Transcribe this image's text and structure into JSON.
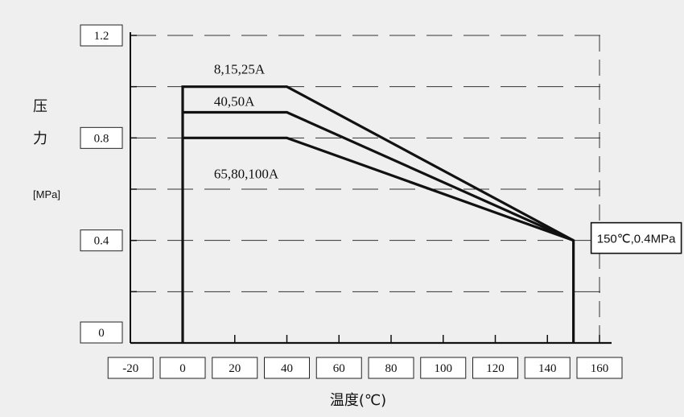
{
  "chart_data": {
    "type": "line",
    "ylabel_chars": [
      "压",
      "力"
    ],
    "yunit": "[MPa]",
    "xlabel": "温度(℃)",
    "x_ticks": [
      "-20",
      "0",
      "20",
      "40",
      "60",
      "80",
      "100",
      "120",
      "140",
      "160"
    ],
    "y_ticks": [
      "1.2",
      "0.8",
      "0.4",
      "0"
    ],
    "xlim": [
      -20,
      160
    ],
    "ylim": [
      0,
      1.2
    ],
    "series": [
      {
        "name": "8,15,25A",
        "x": [
          0,
          0,
          40,
          150,
          150
        ],
        "y": [
          0,
          1.0,
          1.0,
          0.4,
          0
        ]
      },
      {
        "name": "40,50A",
        "x": [
          0,
          40,
          150
        ],
        "y": [
          0.9,
          0.9,
          0.4
        ]
      },
      {
        "name": "65,80,100A",
        "x": [
          0,
          40,
          150
        ],
        "y": [
          0.8,
          0.8,
          0.4
        ]
      }
    ],
    "annotation": {
      "text": "150℃,0.4MPa",
      "x": 150,
      "y": 0.4
    },
    "grid": true
  }
}
